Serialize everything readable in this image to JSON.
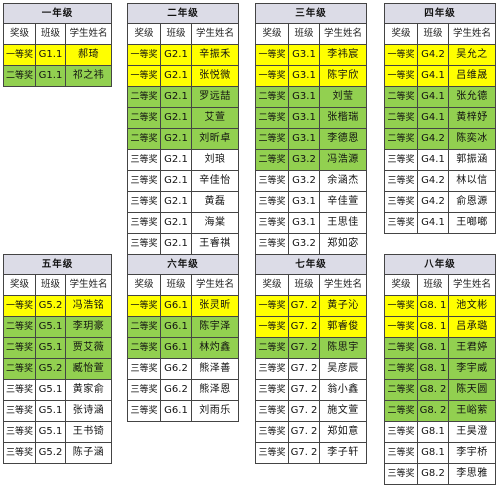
{
  "headers": {
    "award": "奖级",
    "class": "班级",
    "name": "学生姓名"
  },
  "colors": {
    "first": "#ffff00",
    "second": "#92d050",
    "third": "#ffffff",
    "title_bg": "#dcdce7"
  },
  "grades": [
    {
      "title": "一年级",
      "rows": [
        {
          "level": "first",
          "award": "一等奖",
          "class": "G1.1",
          "name": "郝琦"
        },
        {
          "level": "second",
          "award": "二等奖",
          "class": "G1.1",
          "name": "祁之祎"
        }
      ]
    },
    {
      "title": "二年级",
      "rows": [
        {
          "level": "first",
          "award": "一等奖",
          "class": "G2.1",
          "name": "辛振禾"
        },
        {
          "level": "first",
          "award": "一等奖",
          "class": "G2.1",
          "name": "张悦微"
        },
        {
          "level": "second",
          "award": "二等奖",
          "class": "G2.1",
          "name": "罗远喆"
        },
        {
          "level": "second",
          "award": "二等奖",
          "class": "G2.1",
          "name": "艾萱"
        },
        {
          "level": "second",
          "award": "二等奖",
          "class": "G2.1",
          "name": "刘昕卓"
        },
        {
          "level": "third",
          "award": "三等奖",
          "class": "G2.1",
          "name": "刘琅"
        },
        {
          "level": "third",
          "award": "三等奖",
          "class": "G2.1",
          "name": "辛佳怡"
        },
        {
          "level": "third",
          "award": "三等奖",
          "class": "G2.1",
          "name": "黄磊"
        },
        {
          "level": "third",
          "award": "三等奖",
          "class": "G2.1",
          "name": "海棠"
        },
        {
          "level": "third",
          "award": "三等奖",
          "class": "G2.1",
          "name": "王睿祺"
        }
      ]
    },
    {
      "title": "三年级",
      "rows": [
        {
          "level": "first",
          "award": "一等奖",
          "class": "G3.1",
          "name": "李祎宸"
        },
        {
          "level": "first",
          "award": "一等奖",
          "class": "G3.1",
          "name": "陈宇欣"
        },
        {
          "level": "second",
          "award": "二等奖",
          "class": "G3.1",
          "name": "刘莹"
        },
        {
          "level": "second",
          "award": "二等奖",
          "class": "G3.1",
          "name": "张楷瑞"
        },
        {
          "level": "second",
          "award": "二等奖",
          "class": "G3.1",
          "name": "李德恩"
        },
        {
          "level": "second",
          "award": "二等奖",
          "class": "G3.2",
          "name": "冯浩源"
        },
        {
          "level": "third",
          "award": "三等奖",
          "class": "G3.2",
          "name": "余涵杰"
        },
        {
          "level": "third",
          "award": "三等奖",
          "class": "G3.1",
          "name": "辛佳萱"
        },
        {
          "level": "third",
          "award": "三等奖",
          "class": "G3.1",
          "name": "王思佳"
        },
        {
          "level": "third",
          "award": "三等奖",
          "class": "G3.2",
          "name": "郑如宓"
        },
        {
          "level": "third",
          "award": "三等奖",
          "class": "G3.2",
          "name": "李达琳"
        }
      ]
    },
    {
      "title": "四年级",
      "rows": [
        {
          "level": "first",
          "award": "一等奖",
          "class": "G4.2",
          "name": "吴允之"
        },
        {
          "level": "first",
          "award": "一等奖",
          "class": "G4.1",
          "name": "吕维晟"
        },
        {
          "level": "second",
          "award": "二等奖",
          "class": "G4.1",
          "name": "张允德"
        },
        {
          "level": "second",
          "award": "二等奖",
          "class": "G4.1",
          "name": "黄梓妤"
        },
        {
          "level": "second",
          "award": "二等奖",
          "class": "G4.2",
          "name": "陈奕冰"
        },
        {
          "level": "third",
          "award": "三等奖",
          "class": "G4.1",
          "name": "郭振涵"
        },
        {
          "level": "third",
          "award": "三等奖",
          "class": "G4.2",
          "name": "林以信"
        },
        {
          "level": "third",
          "award": "三等奖",
          "class": "G4.2",
          "name": "俞恩源"
        },
        {
          "level": "third",
          "award": "三等奖",
          "class": "G4.1",
          "name": "王啷啷"
        }
      ]
    },
    {
      "title": "五年级",
      "rows": [
        {
          "level": "first",
          "award": "一等奖",
          "class": "G5.2",
          "name": "冯浩铭"
        },
        {
          "level": "second",
          "award": "二等奖",
          "class": "G5.1",
          "name": "李玥豪"
        },
        {
          "level": "second",
          "award": "二等奖",
          "class": "G5.1",
          "name": "贾艾薇"
        },
        {
          "level": "second",
          "award": "二等奖",
          "class": "G5.2",
          "name": "臧怡萱"
        },
        {
          "level": "third",
          "award": "三等奖",
          "class": "G5.1",
          "name": "黄家俞"
        },
        {
          "level": "third",
          "award": "三等奖",
          "class": "G5.1",
          "name": "张诗涵"
        },
        {
          "level": "third",
          "award": "三等奖",
          "class": "G5.1",
          "name": "王书锜"
        },
        {
          "level": "third",
          "award": "三等奖",
          "class": "G5.2",
          "name": "陈子涵"
        }
      ]
    },
    {
      "title": "六年级",
      "rows": [
        {
          "level": "first",
          "award": "一等奖",
          "class": "G6.1",
          "name": "张灵昕"
        },
        {
          "level": "second",
          "award": "二等奖",
          "class": "G6.1",
          "name": "陈宇泽"
        },
        {
          "level": "second",
          "award": "二等奖",
          "class": "G6.1",
          "name": "林灼鑫"
        },
        {
          "level": "third",
          "award": "三等奖",
          "class": "G6.2",
          "name": "熊泽善"
        },
        {
          "level": "third",
          "award": "三等奖",
          "class": "G6.2",
          "name": "熊泽恩"
        },
        {
          "level": "third",
          "award": "三等奖",
          "class": "G6.1",
          "name": "刘雨乐"
        }
      ]
    },
    {
      "title": "七年级",
      "rows": [
        {
          "level": "first",
          "award": "一等奖",
          "class": "G7. 2",
          "name": "黄子沁"
        },
        {
          "level": "first",
          "award": "一等奖",
          "class": "G7. 2",
          "name": "郭睿俊"
        },
        {
          "level": "second",
          "award": "二等奖",
          "class": "G7. 2",
          "name": "陈思宇"
        },
        {
          "level": "third",
          "award": "三等奖",
          "class": "G7. 2",
          "name": "吴彦辰"
        },
        {
          "level": "third",
          "award": "三等奖",
          "class": "G7. 2",
          "name": "翁小鑫"
        },
        {
          "level": "third",
          "award": "三等奖",
          "class": "G7. 2",
          "name": "施文萱"
        },
        {
          "level": "third",
          "award": "三等奖",
          "class": "G7. 2",
          "name": "郑如意"
        },
        {
          "level": "third",
          "award": "三等奖",
          "class": "G7. 2",
          "name": "李子轩"
        }
      ]
    },
    {
      "title": "八年级",
      "rows": [
        {
          "level": "first",
          "award": "一等奖",
          "class": "G8. 1",
          "name": "池文彬"
        },
        {
          "level": "first",
          "award": "一等奖",
          "class": "G8. 1",
          "name": "吕承璐"
        },
        {
          "level": "second",
          "award": "二等奖",
          "class": "G8. 1",
          "name": "王君婷"
        },
        {
          "level": "second",
          "award": "二等奖",
          "class": "G8. 1",
          "name": "李宇威"
        },
        {
          "level": "second",
          "award": "二等奖",
          "class": "G8. 2",
          "name": "陈天圆"
        },
        {
          "level": "second",
          "award": "二等奖",
          "class": "G8. 2",
          "name": "王峪萦"
        },
        {
          "level": "third",
          "award": "三等奖",
          "class": "G8.1",
          "name": "王昊澄"
        },
        {
          "level": "third",
          "award": "三等奖",
          "class": "G8.1",
          "name": "李宇桥"
        },
        {
          "level": "third",
          "award": "三等奖",
          "class": "G8.2",
          "name": "李思雅"
        }
      ]
    }
  ]
}
